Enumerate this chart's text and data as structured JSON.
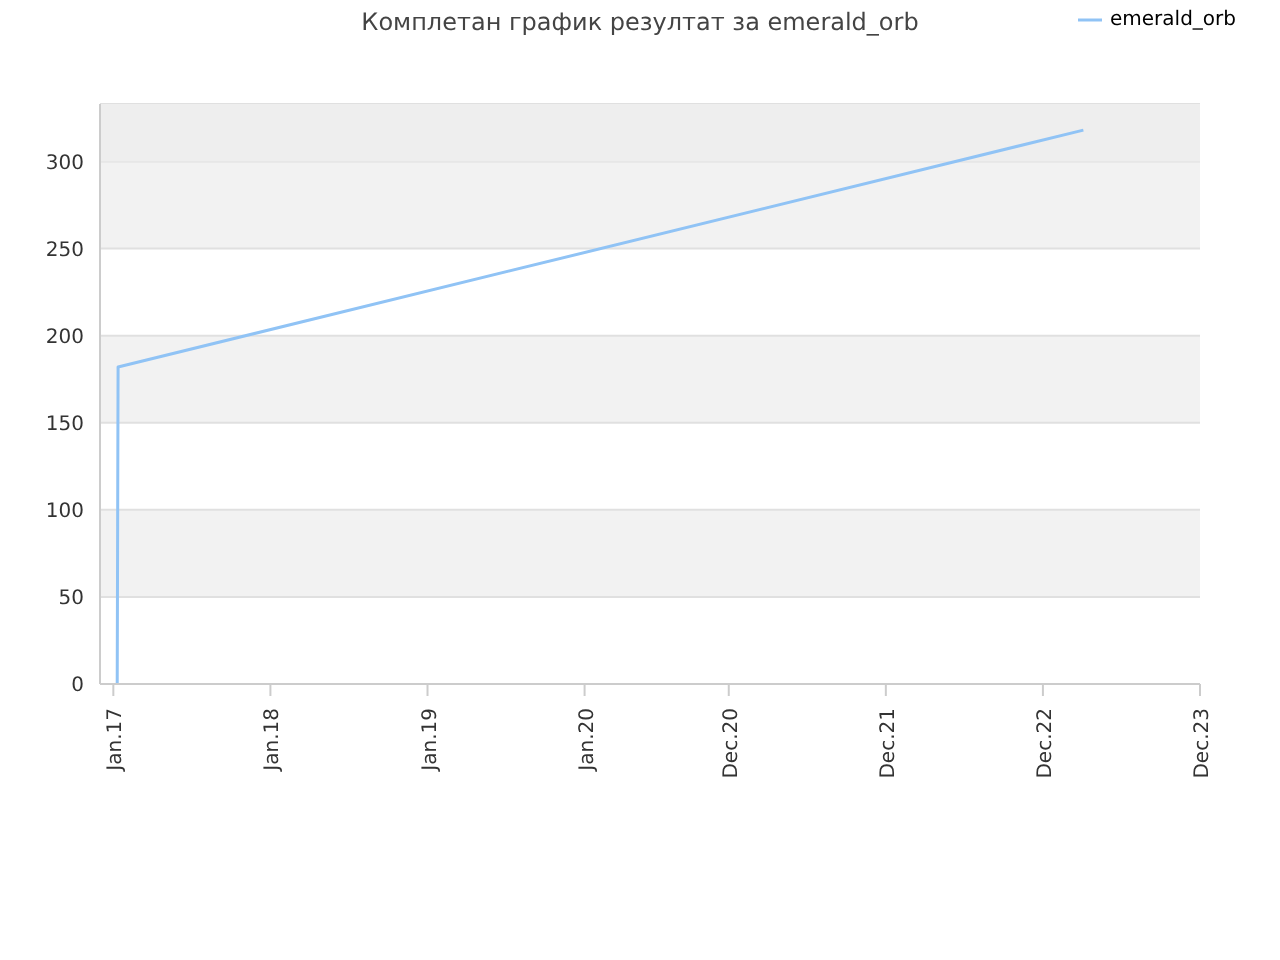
{
  "chart_data": {
    "type": "line",
    "title": "Комплетан график резултат за emerald_orb",
    "x": [
      "2017-01-10",
      "2017-01-12",
      "2023-03-05"
    ],
    "series": [
      {
        "name": "emerald_orb",
        "color": "#90c3f5",
        "values": [
          0,
          182,
          318
        ]
      }
    ],
    "xlim": [
      "2016-12-01",
      "2023-12-01"
    ],
    "xticks": [
      {
        "value": "2017-01-01",
        "label": "Jan.17"
      },
      {
        "value": "2018-01-01",
        "label": "Jan.18"
      },
      {
        "value": "2019-01-01",
        "label": "Jan.19"
      },
      {
        "value": "2020-01-01",
        "label": "Jan.20"
      },
      {
        "value": "2020-12-01",
        "label": "Dec.20"
      },
      {
        "value": "2021-12-01",
        "label": "Dec.21"
      },
      {
        "value": "2022-12-01",
        "label": "Dec.22"
      },
      {
        "value": "2023-12-01",
        "label": "Dec.23"
      }
    ],
    "ylim": [
      0,
      333
    ],
    "bands": [
      {
        "axis": "y",
        "from": 300,
        "to": 333,
        "color": "#eeeeee"
      }
    ],
    "yticks": [
      0,
      50,
      100,
      150,
      200,
      250,
      300
    ],
    "grid": "y",
    "legend": "top right",
    "marker": "none",
    "line_style": "solid"
  }
}
